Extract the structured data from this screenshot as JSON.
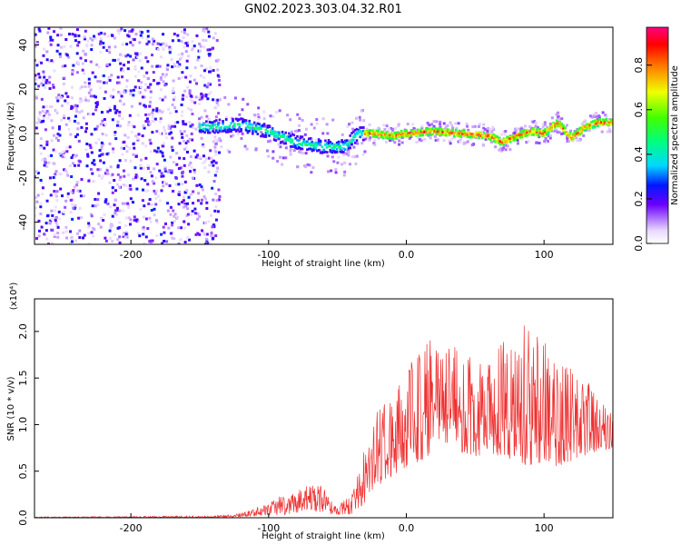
{
  "title": "GN02.2023.303.04.32.R01",
  "chart_data": [
    {
      "type": "heatmap",
      "xlabel": "Height of straight line (km)",
      "ylabel": "Frequency (Hz)",
      "xlim": [
        -270,
        150
      ],
      "ylim": [
        -50,
        48
      ],
      "x_ticks": [
        -200,
        -100,
        0,
        100
      ],
      "y_ticks": [
        -40,
        -20,
        0,
        20,
        40
      ],
      "colorbar": {
        "label": "Normalized spectral amplitude",
        "range": [
          0,
          0.97
        ],
        "ticks": [
          0.0,
          0.2,
          0.4,
          0.6,
          0.8
        ]
      },
      "ridge": {
        "x": [
          -140,
          -120,
          -100,
          -80,
          -60,
          -45,
          -35,
          -25,
          -10,
          0,
          20,
          40,
          60,
          70,
          80,
          90,
          100,
          110,
          120,
          130,
          140,
          150
        ],
        "y": [
          3,
          4,
          1,
          -4,
          -6,
          -6,
          0,
          0,
          -1,
          0,
          1,
          0,
          -1,
          -4,
          -1,
          1,
          0,
          5,
          -2,
          3,
          5,
          5
        ]
      }
    },
    {
      "type": "line",
      "xlabel": "Height of straight line (km)",
      "ylabel": "SNR (10 * v/v)",
      "multiplier": "(x10⁴)",
      "xlim": [
        -270,
        150
      ],
      "ylim": [
        0,
        2.35
      ],
      "x_ticks": [
        -200,
        -100,
        0,
        100
      ],
      "y_ticks": [
        0.0,
        0.5,
        1.0,
        1.5,
        2.0
      ],
      "color": "#ef3030",
      "envelope": {
        "x": [
          -270,
          -200,
          -170,
          -140,
          -120,
          -110,
          -100,
          -90,
          -80,
          -70,
          -60,
          -55,
          -50,
          -40,
          -30,
          -20,
          -10,
          0,
          10,
          20,
          30,
          40,
          50,
          60,
          70,
          80,
          90,
          100,
          110,
          120,
          130,
          140,
          150
        ],
        "low": [
          0.0,
          0.0,
          0.0,
          0.0,
          0.01,
          0.02,
          0.03,
          0.03,
          0.05,
          0.07,
          0.06,
          0.04,
          0.02,
          0.04,
          0.15,
          0.35,
          0.45,
          0.55,
          0.6,
          0.7,
          0.75,
          0.7,
          0.65,
          0.7,
          0.65,
          0.6,
          0.55,
          0.6,
          0.55,
          0.6,
          0.65,
          0.7,
          0.75
        ],
        "high": [
          0.01,
          0.015,
          0.02,
          0.02,
          0.05,
          0.1,
          0.17,
          0.25,
          0.3,
          0.4,
          0.33,
          0.2,
          0.12,
          0.3,
          0.8,
          1.2,
          1.4,
          1.6,
          1.9,
          2.1,
          2.2,
          2.0,
          1.8,
          1.7,
          1.9,
          1.8,
          2.3,
          1.9,
          1.7,
          1.6,
          1.5,
          1.3,
          1.1
        ]
      }
    }
  ]
}
